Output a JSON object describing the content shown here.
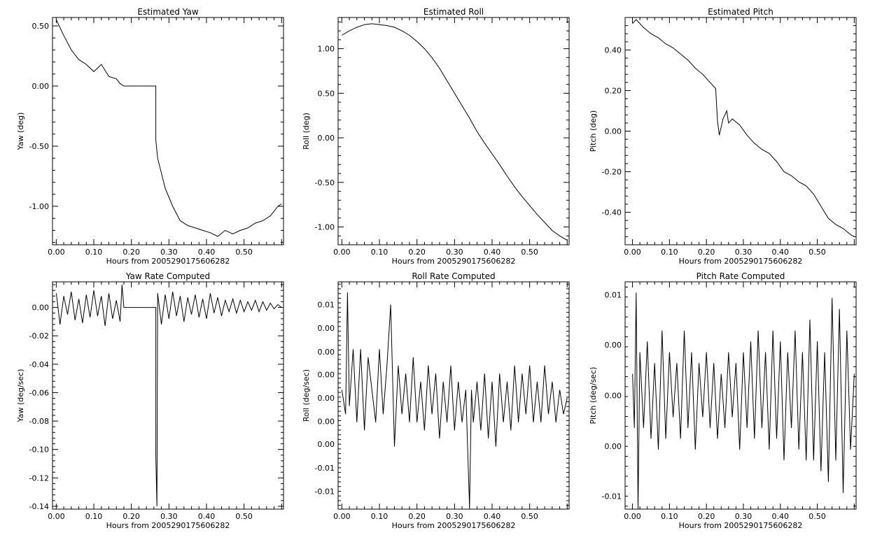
{
  "charts": [
    {
      "type": "line",
      "title": "Estimated Yaw",
      "xlabel": "Hours from 2005290175606282",
      "ylabel": "Yaw (deg)",
      "xlim": [
        -0.01,
        0.605
      ],
      "ylim": [
        -1.32,
        0.57
      ],
      "xticks": [
        0.0,
        0.1,
        0.2,
        0.3,
        0.4,
        0.5
      ],
      "xtick_labels": [
        "0.00",
        "0.10",
        "0.20",
        "0.30",
        "0.40",
        "0.50"
      ],
      "yticks": [
        0.5,
        0.0,
        -0.5,
        -1.0
      ],
      "ytick_labels": [
        "0.50",
        "0.00",
        "-0.50",
        "-1.00"
      ],
      "series": [
        {
          "x": [
            0.0,
            0.02,
            0.04,
            0.06,
            0.08,
            0.1,
            0.12,
            0.14,
            0.16,
            0.17,
            0.18,
            0.265,
            0.265,
            0.27,
            0.29,
            0.31,
            0.33,
            0.35,
            0.37,
            0.39,
            0.41,
            0.43,
            0.45,
            0.47,
            0.49,
            0.51,
            0.53,
            0.55,
            0.57,
            0.59,
            0.6
          ],
          "y": [
            0.55,
            0.42,
            0.3,
            0.22,
            0.18,
            0.12,
            0.18,
            0.08,
            0.06,
            0.02,
            0.0,
            0.0,
            -0.45,
            -0.6,
            -0.85,
            -1.0,
            -1.12,
            -1.16,
            -1.18,
            -1.2,
            -1.22,
            -1.25,
            -1.2,
            -1.23,
            -1.2,
            -1.18,
            -1.14,
            -1.12,
            -1.08,
            -1.0,
            -0.98
          ]
        }
      ]
    },
    {
      "type": "line",
      "title": "Estimated Roll",
      "xlabel": "Hours from 2005290175606282",
      "ylabel": "Roll (deg)",
      "xlim": [
        -0.01,
        0.605
      ],
      "ylim": [
        -1.2,
        1.35
      ],
      "xticks": [
        0.0,
        0.1,
        0.2,
        0.3,
        0.4,
        0.5
      ],
      "xtick_labels": [
        "0.00",
        "0.10",
        "0.20",
        "0.30",
        "0.40",
        "0.50"
      ],
      "yticks": [
        1.0,
        0.5,
        0.0,
        -0.5,
        -1.0
      ],
      "ytick_labels": [
        "1.00",
        "0.50",
        "0.00",
        "-0.50",
        "-1.00"
      ],
      "series": [
        {
          "x": [
            0.0,
            0.02,
            0.04,
            0.06,
            0.08,
            0.1,
            0.12,
            0.14,
            0.16,
            0.18,
            0.2,
            0.22,
            0.24,
            0.26,
            0.28,
            0.3,
            0.32,
            0.34,
            0.36,
            0.38,
            0.4,
            0.42,
            0.44,
            0.46,
            0.48,
            0.5,
            0.52,
            0.54,
            0.56,
            0.58,
            0.6
          ],
          "y": [
            1.15,
            1.2,
            1.24,
            1.27,
            1.28,
            1.27,
            1.26,
            1.24,
            1.2,
            1.15,
            1.08,
            1.0,
            0.9,
            0.78,
            0.64,
            0.5,
            0.36,
            0.22,
            0.07,
            -0.06,
            -0.18,
            -0.3,
            -0.43,
            -0.55,
            -0.66,
            -0.76,
            -0.86,
            -0.95,
            -1.04,
            -1.1,
            -1.15
          ]
        }
      ]
    },
    {
      "type": "line",
      "title": "Estimated Pitch",
      "xlabel": "Hours from 2005290175606282",
      "ylabel": "Pitch (deg)",
      "xlim": [
        -0.02,
        0.605
      ],
      "ylim": [
        -0.56,
        0.56
      ],
      "xticks": [
        0.0,
        0.1,
        0.2,
        0.3,
        0.4,
        0.5
      ],
      "xtick_labels": [
        "0.00",
        "0.10",
        "0.20",
        "0.30",
        "0.40",
        "0.50"
      ],
      "yticks": [
        0.4,
        0.2,
        0.0,
        -0.2,
        -0.4
      ],
      "ytick_labels": [
        "0.40",
        "0.20",
        "0.00",
        "-0.20",
        "-0.40"
      ],
      "series": [
        {
          "x": [
            0.0,
            0.01,
            0.03,
            0.05,
            0.07,
            0.09,
            0.11,
            0.13,
            0.15,
            0.17,
            0.19,
            0.21,
            0.225,
            0.23,
            0.235,
            0.245,
            0.255,
            0.26,
            0.27,
            0.29,
            0.31,
            0.33,
            0.35,
            0.37,
            0.39,
            0.41,
            0.43,
            0.45,
            0.47,
            0.49,
            0.51,
            0.53,
            0.55,
            0.57,
            0.59,
            0.6
          ],
          "y": [
            0.53,
            0.55,
            0.51,
            0.48,
            0.46,
            0.43,
            0.41,
            0.38,
            0.35,
            0.31,
            0.28,
            0.24,
            0.21,
            0.05,
            -0.02,
            0.06,
            0.1,
            0.04,
            0.06,
            0.03,
            -0.02,
            -0.06,
            -0.09,
            -0.11,
            -0.15,
            -0.2,
            -0.22,
            -0.25,
            -0.27,
            -0.31,
            -0.37,
            -0.43,
            -0.46,
            -0.48,
            -0.51,
            -0.52
          ]
        }
      ]
    },
    {
      "type": "line",
      "title": "Yaw Rate Computed",
      "xlabel": "Hours from 2005290175606282",
      "ylabel": "Yaw (deg/sec)",
      "xlim": [
        -0.01,
        0.605
      ],
      "ylim": [
        -0.142,
        0.018
      ],
      "xticks": [
        0.0,
        0.1,
        0.2,
        0.3,
        0.4,
        0.5
      ],
      "xtick_labels": [
        "0.00",
        "0.10",
        "0.20",
        "0.30",
        "0.40",
        "0.50"
      ],
      "yticks": [
        0.0,
        -0.02,
        -0.04,
        -0.06,
        -0.08,
        -0.1,
        -0.12,
        -0.14
      ],
      "ytick_labels": [
        "0.00",
        "-0.02",
        "-0.04",
        "-0.06",
        "-0.08",
        "-0.10",
        "-0.12",
        "-0.14"
      ],
      "series": [
        {
          "x": [
            0.0,
            0.01,
            0.02,
            0.03,
            0.04,
            0.05,
            0.06,
            0.07,
            0.08,
            0.09,
            0.1,
            0.11,
            0.12,
            0.13,
            0.14,
            0.15,
            0.16,
            0.17,
            0.175,
            0.18,
            0.265,
            0.265,
            0.268,
            0.27,
            0.28,
            0.29,
            0.3,
            0.31,
            0.32,
            0.33,
            0.34,
            0.35,
            0.36,
            0.37,
            0.38,
            0.39,
            0.4,
            0.41,
            0.42,
            0.43,
            0.44,
            0.45,
            0.46,
            0.47,
            0.48,
            0.49,
            0.5,
            0.51,
            0.52,
            0.53,
            0.54,
            0.55,
            0.56,
            0.57,
            0.58,
            0.59,
            0.6
          ],
          "y": [
            0.01,
            -0.012,
            0.008,
            -0.005,
            0.011,
            -0.009,
            0.006,
            -0.011,
            0.009,
            -0.007,
            0.012,
            -0.006,
            0.008,
            -0.013,
            0.01,
            -0.008,
            0.005,
            -0.01,
            0.016,
            0.0,
            0.0,
            -0.105,
            -0.14,
            0.01,
            -0.012,
            0.009,
            -0.008,
            0.011,
            -0.006,
            0.008,
            -0.01,
            0.007,
            -0.005,
            0.009,
            -0.007,
            0.006,
            -0.008,
            0.01,
            -0.004,
            0.007,
            -0.006,
            0.005,
            -0.003,
            0.006,
            -0.004,
            0.005,
            -0.003,
            0.004,
            -0.002,
            0.005,
            -0.003,
            0.004,
            -0.002,
            0.003,
            -0.001,
            0.002,
            0.0
          ]
        }
      ]
    },
    {
      "type": "line",
      "title": "Roll Rate Computed",
      "xlabel": "Hours from 2005290175606282",
      "ylabel": "Roll (deg/sec)",
      "xlim": [
        -0.01,
        0.605
      ],
      "ylim": [
        -0.0137,
        0.0143
      ],
      "xticks": [
        0.0,
        0.1,
        0.2,
        0.3,
        0.4,
        0.5
      ],
      "xtick_labels": [
        "0.00",
        "0.10",
        "0.20",
        "0.30",
        "0.40",
        "0.50"
      ],
      "yticks": [
        0.0115,
        0.0086,
        0.0057,
        0.0029,
        0.0,
        -0.0029,
        -0.0057,
        -0.0086,
        -0.0115
      ],
      "ytick_labels": [
        "0.01",
        "0.00",
        "0.00",
        "0.00",
        "0.00",
        "0.00",
        "0.00",
        "-0.01",
        "-0.01"
      ],
      "series": [
        {
          "x": [
            0.0,
            0.01,
            0.015,
            0.02,
            0.03,
            0.04,
            0.05,
            0.06,
            0.07,
            0.08,
            0.09,
            0.1,
            0.11,
            0.12,
            0.13,
            0.14,
            0.15,
            0.16,
            0.17,
            0.18,
            0.19,
            0.2,
            0.21,
            0.22,
            0.23,
            0.24,
            0.25,
            0.26,
            0.27,
            0.28,
            0.29,
            0.3,
            0.31,
            0.32,
            0.33,
            0.34,
            0.345,
            0.35,
            0.36,
            0.37,
            0.38,
            0.39,
            0.4,
            0.41,
            0.42,
            0.43,
            0.44,
            0.45,
            0.46,
            0.47,
            0.48,
            0.49,
            0.5,
            0.51,
            0.52,
            0.53,
            0.54,
            0.55,
            0.56,
            0.57,
            0.58,
            0.59,
            0.6
          ],
          "y": [
            0.001,
            -0.002,
            0.013,
            -0.001,
            0.006,
            -0.003,
            0.006,
            -0.004,
            0.005,
            0.001,
            -0.003,
            0.006,
            -0.002,
            0.004,
            0.0115,
            -0.006,
            0.004,
            -0.002,
            0.003,
            -0.003,
            0.005,
            -0.003,
            0.002,
            -0.004,
            0.004,
            -0.002,
            0.003,
            -0.005,
            0.002,
            -0.003,
            0.004,
            -0.004,
            0.002,
            -0.003,
            0.001,
            -0.0135,
            0.001,
            -0.003,
            0.002,
            -0.004,
            0.003,
            -0.005,
            0.002,
            -0.006,
            0.003,
            -0.003,
            0.002,
            -0.004,
            0.004,
            -0.003,
            0.003,
            -0.002,
            0.004,
            -0.003,
            0.002,
            -0.003,
            0.004,
            -0.002,
            0.002,
            -0.003,
            0.001,
            -0.002,
            0.0
          ]
        }
      ]
    },
    {
      "type": "line",
      "title": "Pitch Rate Computed",
      "xlabel": "Hours from 2005290175606282",
      "ylabel": "Pitch (deg/sec)",
      "xlim": [
        -0.02,
        0.605
      ],
      "ylim": [
        -0.0105,
        0.0105
      ],
      "xticks": [
        0.0,
        0.1,
        0.2,
        0.3,
        0.4,
        0.5
      ],
      "xtick_labels": [
        "0.00",
        "0.10",
        "0.20",
        "0.30",
        "0.40",
        "0.50"
      ],
      "yticks": [
        0.0093,
        0.0047,
        0.0,
        -0.0047,
        -0.0093
      ],
      "ytick_labels": [
        "0.01",
        "0.00",
        "0.00",
        "0.00",
        "-0.01"
      ],
      "series": [
        {
          "x": [
            0.0,
            0.005,
            0.01,
            0.015,
            0.02,
            0.03,
            0.04,
            0.05,
            0.06,
            0.07,
            0.08,
            0.09,
            0.1,
            0.11,
            0.12,
            0.13,
            0.14,
            0.15,
            0.16,
            0.17,
            0.18,
            0.19,
            0.2,
            0.21,
            0.22,
            0.23,
            0.24,
            0.25,
            0.26,
            0.27,
            0.28,
            0.29,
            0.3,
            0.31,
            0.32,
            0.33,
            0.34,
            0.35,
            0.36,
            0.37,
            0.38,
            0.39,
            0.4,
            0.41,
            0.42,
            0.43,
            0.44,
            0.45,
            0.46,
            0.47,
            0.48,
            0.49,
            0.5,
            0.51,
            0.52,
            0.53,
            0.54,
            0.55,
            0.56,
            0.57,
            0.58,
            0.59,
            0.6
          ],
          "y": [
            0.002,
            -0.003,
            0.0095,
            -0.0105,
            0.004,
            -0.003,
            0.005,
            -0.004,
            0.003,
            -0.005,
            0.006,
            -0.004,
            0.004,
            -0.002,
            0.003,
            -0.004,
            0.006,
            -0.003,
            0.004,
            -0.005,
            0.003,
            -0.002,
            0.004,
            -0.003,
            0.003,
            -0.004,
            0.002,
            -0.003,
            0.004,
            -0.002,
            0.003,
            -0.005,
            0.004,
            -0.003,
            0.005,
            -0.004,
            0.006,
            -0.003,
            0.004,
            -0.005,
            0.006,
            -0.004,
            0.005,
            -0.006,
            0.004,
            -0.003,
            0.006,
            -0.005,
            0.004,
            -0.006,
            0.007,
            -0.006,
            0.005,
            -0.007,
            0.004,
            -0.008,
            0.009,
            -0.006,
            0.008,
            -0.009,
            0.006,
            -0.005,
            0.002
          ]
        }
      ]
    }
  ]
}
